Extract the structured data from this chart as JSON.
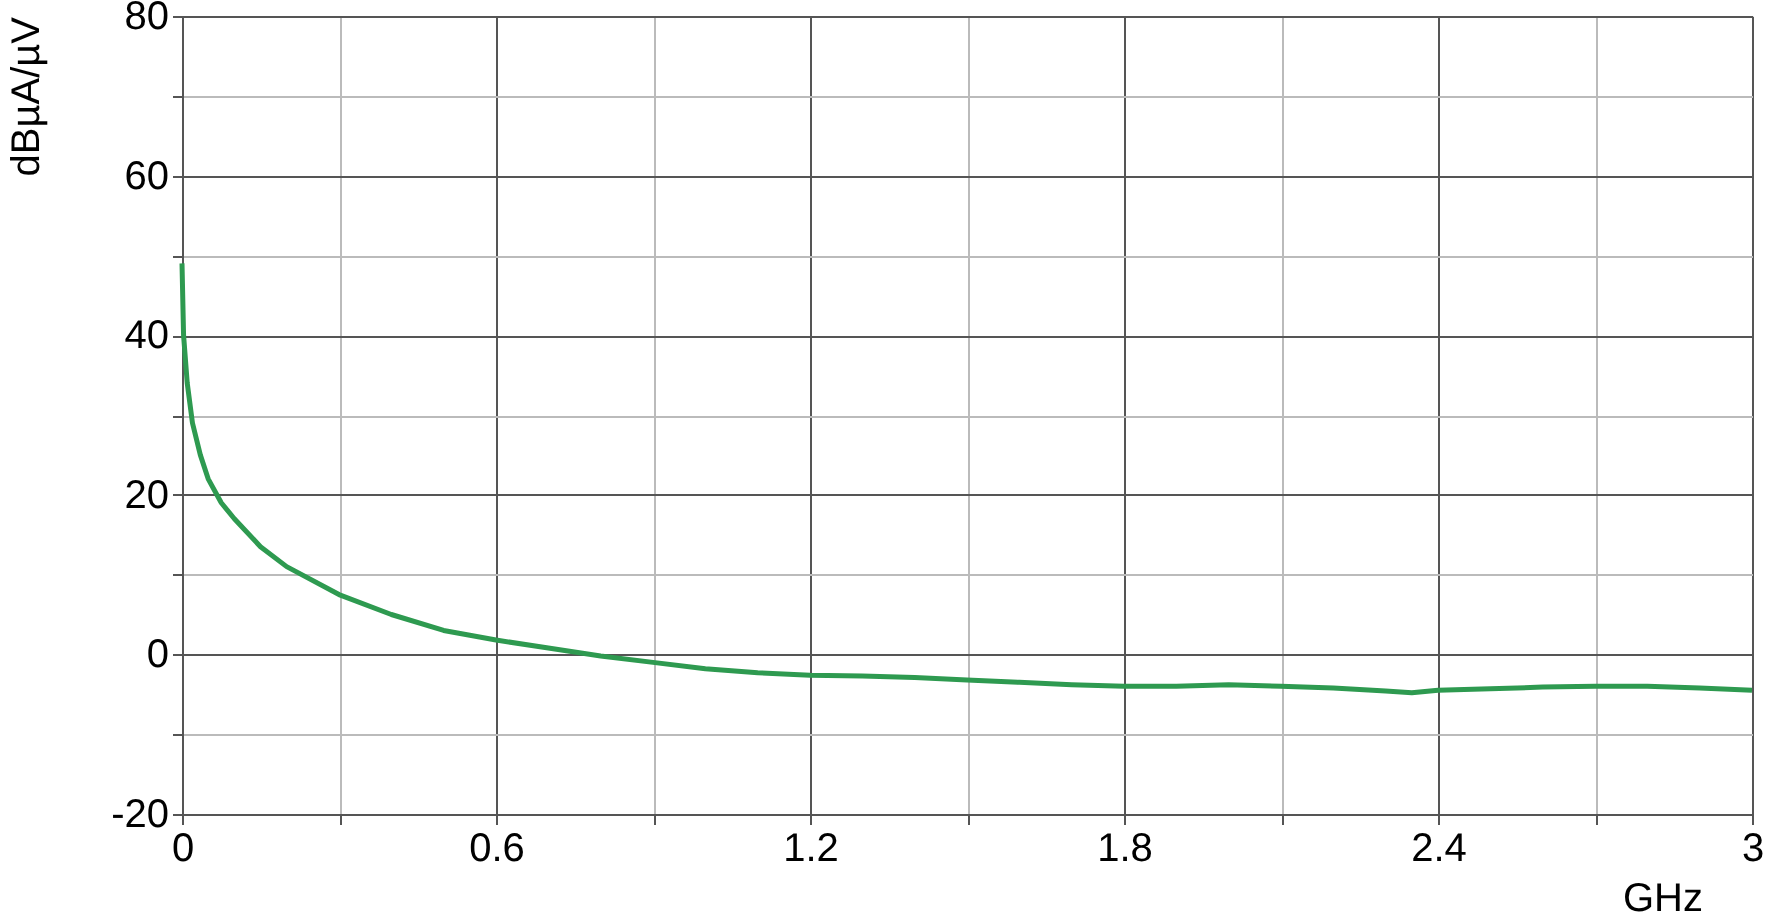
{
  "chart_data": {
    "type": "line",
    "xlabel": "GHz",
    "ylabel": "dBµA/µV",
    "x": [
      0,
      0.003,
      0.01,
      0.02,
      0.035,
      0.05,
      0.075,
      0.1,
      0.15,
      0.2,
      0.3,
      0.4,
      0.5,
      0.6,
      0.7,
      0.8,
      0.9,
      1.0,
      1.1,
      1.2,
      1.3,
      1.4,
      1.5,
      1.6,
      1.7,
      1.8,
      1.9,
      2.0,
      2.1,
      2.2,
      2.3,
      2.35,
      2.4,
      2.5,
      2.6,
      2.7,
      2.8,
      2.9,
      3.0
    ],
    "series": [
      {
        "color": "#2e9a50",
        "values": [
          49,
          40,
          34,
          29,
          25,
          22,
          19,
          17,
          13.5,
          11,
          7.5,
          5,
          3,
          1.8,
          0.8,
          -0.2,
          -1,
          -1.8,
          -2.3,
          -2.6,
          -2.7,
          -2.9,
          -3.2,
          -3.5,
          -3.8,
          -4,
          -4,
          -3.8,
          -4,
          -4.2,
          -4.6,
          -4.8,
          -4.5,
          -4.3,
          -4.1,
          -4,
          -4,
          -4.2,
          -4.5
        ]
      }
    ],
    "xlim": [
      0,
      3
    ],
    "ylim": [
      -20,
      80
    ],
    "xticks": [
      0,
      {
        "value": 0.3,
        "label": null
      },
      0.6,
      {
        "value": 0.9,
        "label": null
      },
      1.2,
      {
        "value": 1.5,
        "label": null
      },
      1.8,
      {
        "value": 2.1,
        "label": null
      },
      2.4,
      {
        "value": 2.7,
        "label": null
      },
      3
    ],
    "yticks": [
      -20,
      {
        "value": -10,
        "label": null
      },
      0,
      {
        "value": 10,
        "label": null
      },
      20,
      {
        "value": 30,
        "label": null
      },
      40,
      {
        "value": 50,
        "label": null
      },
      60,
      {
        "value": 70,
        "label": null
      },
      80
    ],
    "grid": true,
    "marker": "none",
    "line_style": "solid"
  }
}
